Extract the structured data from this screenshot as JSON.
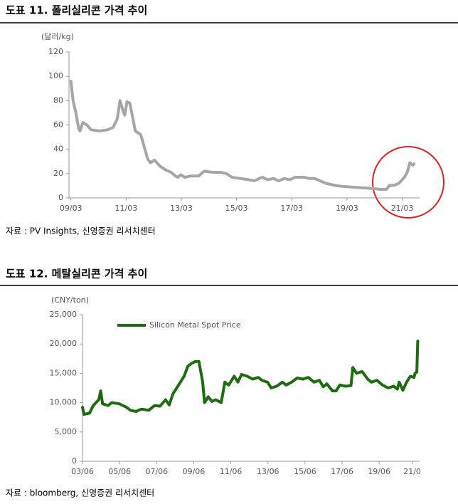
{
  "chart_data": [
    {
      "type": "line",
      "title": "도표 11. 폴리실리콘 가격 추이",
      "y_label": "(달러/kg)",
      "source": "자료 : PV Insights, 신영증권 리서치센터",
      "color": "#a6a6a6",
      "x": [
        2009.17,
        2009.25,
        2009.35,
        2009.45,
        2009.5,
        2009.6,
        2009.75,
        2009.9,
        2010.2,
        2010.5,
        2010.7,
        2010.85,
        2010.95,
        2011.05,
        2011.12,
        2011.2,
        2011.3,
        2011.4,
        2011.5,
        2011.7,
        2011.85,
        2011.95,
        2012.05,
        2012.2,
        2012.4,
        2012.6,
        2012.8,
        2012.95,
        2013.05,
        2013.15,
        2013.3,
        2013.5,
        2013.8,
        2013.9,
        2014.0,
        2014.3,
        2014.6,
        2014.8,
        2015.0,
        2015.3,
        2015.6,
        2015.8,
        2016.0,
        2016.1,
        2016.3,
        2016.5,
        2016.7,
        2016.9,
        2017.1,
        2017.3,
        2017.6,
        2017.8,
        2018.0,
        2018.2,
        2018.4,
        2018.6,
        2018.8,
        2019.0,
        2019.3,
        2019.6,
        2019.9,
        2020.2,
        2020.4,
        2020.6,
        2020.7,
        2020.9,
        2021.05,
        2021.25,
        2021.35,
        2021.45,
        2021.55,
        2021.6
      ],
      "values": [
        96,
        80,
        70,
        57,
        55,
        62,
        60,
        56,
        55,
        56,
        58,
        65,
        80,
        72,
        68,
        79,
        78,
        67,
        55,
        52,
        40,
        32,
        29,
        31,
        26,
        23,
        21,
        18,
        17,
        19,
        17,
        18,
        18,
        20,
        22,
        21,
        21,
        20,
        17,
        16,
        15,
        14,
        16,
        17,
        15,
        16,
        14,
        16,
        15,
        17,
        17,
        16,
        16,
        14,
        12,
        11,
        10,
        9.5,
        9,
        8.5,
        8,
        7.5,
        7,
        7,
        10,
        10.5,
        12,
        17,
        21,
        29,
        27,
        28
      ],
      "xlim": [
        2009.1,
        2021.8
      ],
      "xticks": [
        {
          "value": 2009.17,
          "label": "09/03"
        },
        {
          "value": 2011.17,
          "label": "11/03"
        },
        {
          "value": 2013.17,
          "label": "13/03"
        },
        {
          "value": 2015.17,
          "label": "15/03"
        },
        {
          "value": 2017.17,
          "label": "17/03"
        },
        {
          "value": 2019.17,
          "label": "19/03"
        },
        {
          "value": 2021.17,
          "label": "21/03"
        }
      ],
      "ylim": [
        0,
        120
      ],
      "yticks": [
        0,
        20,
        40,
        60,
        80,
        100,
        120
      ]
    },
    {
      "type": "line",
      "title": "도표 12. 메탈실리콘 가격 추이",
      "y_label": "(CNY/ton)",
      "source": "자료 : bloomberg, 신영증권 리서치센터",
      "x": [
        2003.42,
        2003.5,
        2003.8,
        2004.0,
        2004.3,
        2004.4,
        2004.5,
        2004.8,
        2005.0,
        2005.4,
        2005.8,
        2006.0,
        2006.3,
        2006.6,
        2007.0,
        2007.3,
        2007.6,
        2007.9,
        2008.1,
        2008.3,
        2008.6,
        2008.9,
        2009.1,
        2009.3,
        2009.5,
        2009.7,
        2009.9,
        2010.0,
        2010.2,
        2010.4,
        2010.6,
        2010.9,
        2011.1,
        2011.3,
        2011.6,
        2011.8,
        2012.0,
        2012.3,
        2012.6,
        2012.9,
        2013.1,
        2013.4,
        2013.6,
        2013.9,
        2014.2,
        2014.4,
        2014.7,
        2015.0,
        2015.3,
        2015.6,
        2015.9,
        2016.2,
        2016.4,
        2016.6,
        2016.9,
        2017.1,
        2017.3,
        2017.6,
        2017.9,
        2018.0,
        2018.2,
        2018.5,
        2018.8,
        2019.0,
        2019.3,
        2019.6,
        2019.9,
        2020.2,
        2020.4,
        2020.5,
        2020.7,
        2020.9,
        2021.1,
        2021.3,
        2021.35,
        2021.45,
        2021.5
      ],
      "series": [
        {
          "name": "Silicon Metal Spot Price",
          "color": "#1e6b12",
          "values": [
            9200,
            8000,
            8200,
            9500,
            10500,
            12000,
            9800,
            9500,
            10000,
            9800,
            9200,
            8700,
            8500,
            8900,
            8700,
            9500,
            9400,
            10500,
            9600,
            11500,
            13000,
            14500,
            16200,
            16700,
            17000,
            17000,
            13500,
            10000,
            11000,
            10200,
            10500,
            10000,
            13500,
            13000,
            14500,
            13500,
            14800,
            14500,
            14000,
            14300,
            13800,
            13500,
            12500,
            12800,
            13500,
            13000,
            13500,
            14200,
            14000,
            14300,
            13500,
            13800,
            12700,
            13200,
            12000,
            12000,
            13000,
            12800,
            12900,
            16000,
            15000,
            15300,
            14000,
            13500,
            13800,
            13000,
            12500,
            12800,
            12300,
            13500,
            12100,
            13500,
            14500,
            14300,
            15000,
            15200,
            20500
          ]
        }
      ],
      "xlim": [
        2003.42,
        2021.6
      ],
      "xticks": [
        {
          "value": 2003.42,
          "label": "03/06"
        },
        {
          "value": 2005.42,
          "label": "05/06"
        },
        {
          "value": 2007.42,
          "label": "07/06"
        },
        {
          "value": 2009.42,
          "label": "09/06"
        },
        {
          "value": 2011.42,
          "label": "11/06"
        },
        {
          "value": 2013.42,
          "label": "13/06"
        },
        {
          "value": 2015.42,
          "label": "15/06"
        },
        {
          "value": 2017.42,
          "label": "17/06"
        },
        {
          "value": 2019.42,
          "label": "19/06"
        },
        {
          "value": 2021.2,
          "label": "21/0"
        }
      ],
      "ylim": [
        0,
        25000
      ],
      "yticks": [
        {
          "value": 0,
          "label": "0"
        },
        {
          "value": 5000,
          "label": "5,000"
        },
        {
          "value": 10000,
          "label": "10,000"
        },
        {
          "value": 15000,
          "label": "15,000"
        },
        {
          "value": 20000,
          "label": "20,000"
        },
        {
          "value": 25000,
          "label": "25,000"
        }
      ]
    }
  ]
}
